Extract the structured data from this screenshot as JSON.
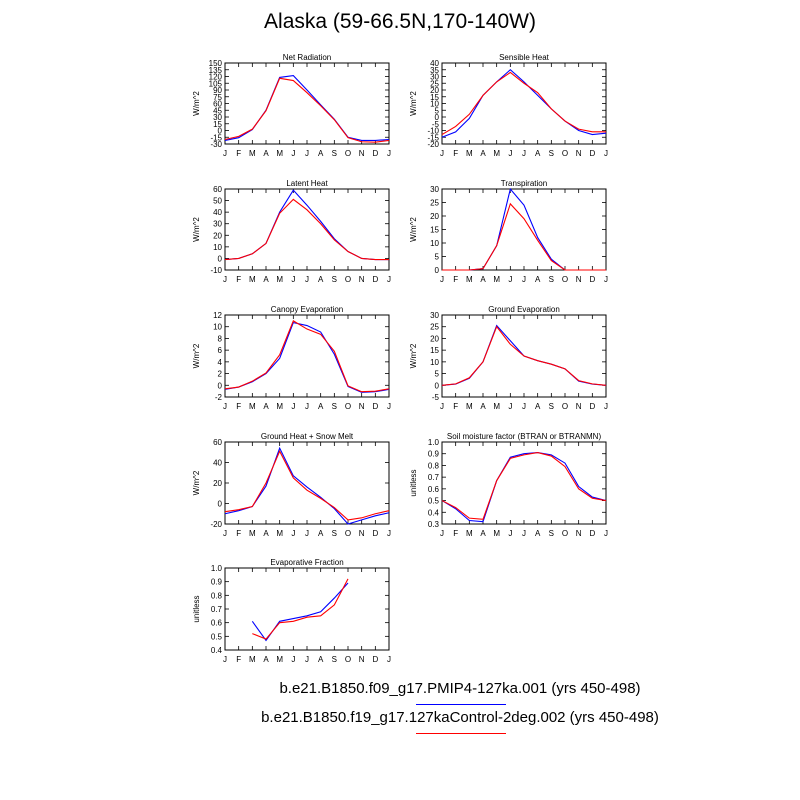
{
  "title": "Alaska (59-66.5N,170-140W)",
  "colors": {
    "run1": "#0000ff",
    "run2": "#ff0000"
  },
  "legend": [
    {
      "label": "b.e21.B1850.f09_g17.PMIP4-127ka.001 (yrs 450-498)",
      "color": "#0000ff"
    },
    {
      "label": "b.e21.B1850.f19_g17.127kaControl-2deg.002 (yrs 450-498)",
      "color": "#ff0000"
    }
  ],
  "chart_data": [
    {
      "type": "line",
      "title": "Net Radiation",
      "ylabel": "W/m^2",
      "categories": [
        "J",
        "F",
        "M",
        "A",
        "M",
        "J",
        "J",
        "A",
        "S",
        "O",
        "N",
        "D",
        "J"
      ],
      "ylim": [
        -30,
        150
      ],
      "yticks": [
        -30,
        -15,
        0,
        15,
        30,
        45,
        60,
        75,
        90,
        105,
        120,
        135,
        150
      ],
      "series": [
        {
          "values": [
            -22,
            -16,
            2,
            45,
            118,
            122,
            90,
            57,
            25,
            -15,
            -22,
            -22,
            -20
          ]
        },
        {
          "values": [
            -20,
            -13,
            3,
            44,
            116,
            111,
            84,
            55,
            24,
            -16,
            -25,
            -26,
            -22
          ]
        }
      ]
    },
    {
      "type": "line",
      "title": "Sensible Heat",
      "ylabel": "W/m^2",
      "categories": [
        "J",
        "F",
        "M",
        "A",
        "M",
        "J",
        "J",
        "A",
        "S",
        "O",
        "N",
        "D",
        "J"
      ],
      "ylim": [
        -20,
        40
      ],
      "yticks": [
        -20,
        -15,
        -10,
        -5,
        0,
        5,
        10,
        15,
        20,
        25,
        30,
        35,
        40
      ],
      "series": [
        {
          "values": [
            -15,
            -11,
            -1,
            16,
            26,
            35,
            26,
            16,
            6,
            -3,
            -10,
            -13,
            -12
          ]
        },
        {
          "values": [
            -13,
            -7,
            2,
            16,
            26,
            33,
            25,
            18,
            6,
            -3,
            -9,
            -11,
            -11
          ]
        }
      ]
    },
    {
      "type": "line",
      "title": "Latent Heat",
      "ylabel": "W/m^2",
      "categories": [
        "J",
        "F",
        "M",
        "A",
        "M",
        "J",
        "J",
        "A",
        "S",
        "O",
        "N",
        "D",
        "J"
      ],
      "ylim": [
        -10,
        60
      ],
      "yticks": [
        -10,
        0,
        10,
        20,
        30,
        40,
        50,
        60
      ],
      "series": [
        {
          "values": [
            -1,
            0,
            4,
            13,
            40,
            59,
            46,
            32,
            17,
            6,
            0,
            -1,
            -1
          ]
        },
        {
          "values": [
            -1,
            0,
            4,
            13,
            39,
            51,
            42,
            30,
            16,
            6,
            0,
            -1,
            -1
          ]
        }
      ]
    },
    {
      "type": "line",
      "title": "Transpiration",
      "ylabel": "W/m^2",
      "categories": [
        "J",
        "F",
        "M",
        "A",
        "M",
        "J",
        "J",
        "A",
        "S",
        "O",
        "N",
        "D",
        "J"
      ],
      "ylim": [
        0,
        30
      ],
      "yticks": [
        0,
        5,
        10,
        15,
        20,
        25,
        30
      ],
      "series": [
        {
          "values": [
            0,
            0,
            0,
            0.5,
            9,
            30,
            24,
            12,
            4,
            0,
            0,
            0,
            0
          ]
        },
        {
          "values": [
            0,
            0,
            0,
            0.5,
            9,
            24.5,
            19,
            11,
            3.5,
            0,
            0,
            0,
            0
          ]
        }
      ]
    },
    {
      "type": "line",
      "title": "Canopy Evaporation",
      "ylabel": "W/m^2",
      "categories": [
        "J",
        "F",
        "M",
        "A",
        "M",
        "J",
        "J",
        "A",
        "S",
        "O",
        "N",
        "D",
        "J"
      ],
      "ylim": [
        -2,
        12
      ],
      "yticks": [
        -2,
        0,
        2,
        4,
        6,
        8,
        10,
        12
      ],
      "series": [
        {
          "values": [
            -0.7,
            -0.3,
            0.6,
            2,
            4.6,
            10.7,
            10.2,
            9.1,
            5.3,
            -0.2,
            -1.2,
            -1.1,
            -0.7
          ]
        },
        {
          "values": [
            -0.6,
            -0.3,
            0.7,
            2.1,
            5.2,
            11,
            9.6,
            8.7,
            5.8,
            -0.1,
            -1.1,
            -1,
            -0.6
          ]
        }
      ]
    },
    {
      "type": "line",
      "title": "Ground Evaporation",
      "ylabel": "W/m^2",
      "categories": [
        "J",
        "F",
        "M",
        "A",
        "M",
        "J",
        "J",
        "A",
        "S",
        "O",
        "N",
        "D",
        "J"
      ],
      "ylim": [
        -5,
        30
      ],
      "yticks": [
        -5,
        0,
        5,
        10,
        15,
        20,
        25,
        30
      ],
      "series": [
        {
          "values": [
            0,
            0.5,
            3,
            10,
            25.5,
            19,
            12.5,
            10.5,
            9,
            7,
            1.8,
            0.5,
            0
          ]
        },
        {
          "values": [
            0,
            0.6,
            3.2,
            10,
            25,
            17.5,
            12.5,
            10.5,
            9,
            7,
            2,
            0.6,
            0
          ]
        }
      ]
    },
    {
      "type": "line",
      "title": "Ground Heat + Snow Melt",
      "ylabel": "W/m^2",
      "categories": [
        "J",
        "F",
        "M",
        "A",
        "M",
        "J",
        "J",
        "A",
        "S",
        "O",
        "N",
        "D",
        "J"
      ],
      "ylim": [
        -20,
        60
      ],
      "yticks": [
        -20,
        0,
        20,
        40,
        60
      ],
      "series": [
        {
          "values": [
            -10,
            -7,
            -3,
            17,
            54,
            27,
            16,
            6,
            -5,
            -20,
            -16,
            -12,
            -9
          ]
        },
        {
          "values": [
            -8,
            -6,
            -3,
            20,
            51,
            25,
            13,
            5,
            -4,
            -16,
            -14,
            -10,
            -7
          ]
        }
      ]
    },
    {
      "type": "line",
      "title": "Soil moisture factor (BTRAN or BTRANMN)",
      "ylabel": "unitless",
      "categories": [
        "J",
        "F",
        "M",
        "A",
        "M",
        "J",
        "J",
        "A",
        "S",
        "O",
        "N",
        "D",
        "J"
      ],
      "ylim": [
        0.3,
        1.0
      ],
      "yticks": [
        0.3,
        0.4,
        0.5,
        0.6,
        0.7,
        0.8,
        0.9,
        1.0
      ],
      "series": [
        {
          "values": [
            0.5,
            0.43,
            0.33,
            0.32,
            0.67,
            0.87,
            0.9,
            0.91,
            0.89,
            0.82,
            0.62,
            0.53,
            0.5
          ]
        },
        {
          "values": [
            0.5,
            0.44,
            0.35,
            0.34,
            0.67,
            0.86,
            0.89,
            0.91,
            0.88,
            0.79,
            0.6,
            0.52,
            0.5
          ]
        }
      ]
    },
    {
      "type": "line",
      "title": "Evaporative Fraction",
      "ylabel": "unitless",
      "categories": [
        "J",
        "F",
        "M",
        "A",
        "M",
        "J",
        "J",
        "A",
        "S",
        "O",
        "N",
        "D",
        "J"
      ],
      "ylim": [
        0.4,
        1.0
      ],
      "yticks": [
        0.4,
        0.5,
        0.6,
        0.7,
        0.8,
        0.9,
        1.0
      ],
      "series": [
        {
          "values": [
            null,
            null,
            0.61,
            0.47,
            0.61,
            0.63,
            0.65,
            0.68,
            0.78,
            0.89,
            null,
            null,
            null
          ]
        },
        {
          "values": [
            null,
            null,
            0.52,
            0.48,
            0.6,
            0.61,
            0.64,
            0.65,
            0.73,
            0.92,
            null,
            null,
            null
          ]
        }
      ]
    }
  ]
}
